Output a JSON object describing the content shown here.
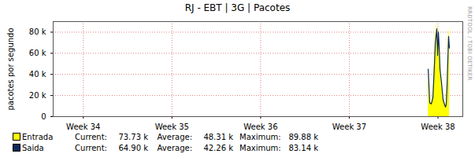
{
  "chart_data": {
    "type": "area",
    "title": "RJ - EBT | 3G | Pacotes",
    "y_label": "pacotes por segundo",
    "x": [
      37.89,
      37.899,
      37.907,
      37.925,
      37.943,
      37.961,
      37.97,
      37.978,
      37.987,
      37.996,
      38.005,
      38.014,
      38.023,
      38.04,
      38.058,
      38.076,
      38.085,
      38.094,
      38.103,
      38.112,
      38.12,
      38.129
    ],
    "xlim": [
      33.66,
      38.28
    ],
    "xticks": [
      {
        "value": 34,
        "label": "Week 34"
      },
      {
        "value": 35,
        "label": "Week 35"
      },
      {
        "value": 36,
        "label": "Week 36"
      },
      {
        "value": 37,
        "label": "Week 37"
      },
      {
        "value": 38,
        "label": "Week 38"
      }
    ],
    "ylim": [
      0,
      90000
    ],
    "yticks": [
      0,
      {
        "value": 20000,
        "label": "20 k"
      },
      {
        "value": 40000,
        "label": "40 k"
      },
      {
        "value": 60000,
        "label": "60 k"
      },
      {
        "value": 80000,
        "label": "80 k"
      }
    ],
    "grid": true,
    "legend": "bottom",
    "stat_labels": [
      "Current:",
      "Average:",
      "Maximum:"
    ],
    "series": [
      {
        "name": "Entrada",
        "type": "area",
        "color": "#ffff00",
        "values": [
          48000,
          30000,
          14000,
          13000,
          20000,
          55000,
          75000,
          80000,
          89880,
          62000,
          84000,
          70000,
          50000,
          35000,
          18000,
          12000,
          10000,
          14000,
          35000,
          60000,
          85000,
          73730
        ],
        "stats": [
          {
            "value": 73730,
            "label": "73.73 k"
          },
          {
            "value": 48310,
            "label": "48.31 k"
          },
          {
            "value": 89880,
            "label": "89.88 k"
          }
        ]
      },
      {
        "name": "Saida",
        "type": "line",
        "color": "#0b2a5c",
        "values": [
          45000,
          28000,
          13000,
          12000,
          18000,
          50000,
          70000,
          76000,
          83140,
          58000,
          80000,
          65000,
          45000,
          32000,
          16000,
          11000,
          9000,
          12000,
          30000,
          55000,
          76000,
          64900
        ],
        "stats": [
          {
            "value": 64900,
            "label": "64.90 k"
          },
          {
            "value": 42260,
            "label": "42.26 k"
          },
          {
            "value": 83140,
            "label": "83.14 k"
          }
        ]
      }
    ],
    "watermark": "RRDTOOL / TOBI OETIKER"
  }
}
